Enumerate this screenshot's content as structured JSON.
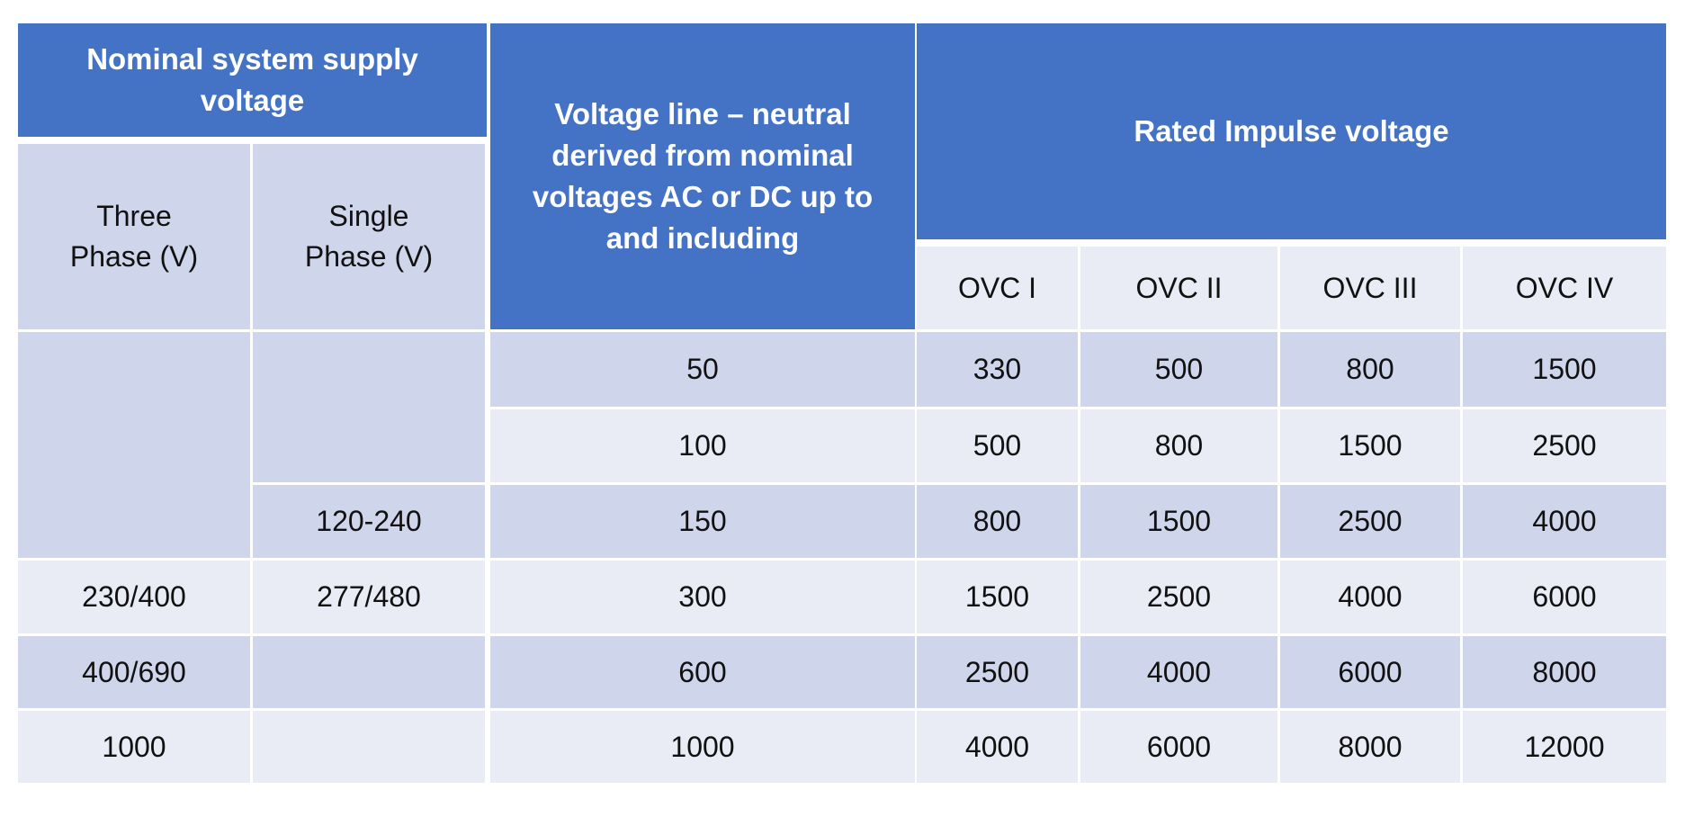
{
  "header": {
    "nominal": "Nominal system supply voltage",
    "three_phase": "Three Phase (V)",
    "single_phase": "Single Phase (V)",
    "line_neutral": "Voltage line – neutral derived from nominal voltages AC or DC up to and including",
    "rated_impulse": "Rated Impulse voltage",
    "ovc": [
      "OVC I",
      "OVC II",
      "OVC III",
      "OVC IV"
    ]
  },
  "rows": [
    {
      "three": "",
      "single": "",
      "ln": "50",
      "ovc": [
        "330",
        "500",
        "800",
        "1500"
      ]
    },
    {
      "three": "",
      "single": "",
      "ln": "100",
      "ovc": [
        "500",
        "800",
        "1500",
        "2500"
      ]
    },
    {
      "three": "",
      "single": "120-240",
      "ln": "150",
      "ovc": [
        "800",
        "1500",
        "2500",
        "4000"
      ]
    },
    {
      "three": "230/400",
      "single": "277/480",
      "ln": "300",
      "ovc": [
        "1500",
        "2500",
        "4000",
        "6000"
      ]
    },
    {
      "three": "400/690",
      "single": "",
      "ln": "600",
      "ovc": [
        "2500",
        "4000",
        "6000",
        "8000"
      ]
    },
    {
      "three": "1000",
      "single": "",
      "ln": "1000",
      "ovc": [
        "4000",
        "6000",
        "8000",
        "12000"
      ]
    }
  ],
  "colors": {
    "header": "#4472C4",
    "row_dark": "#CFD5EA",
    "row_light": "#E9EBF5"
  }
}
